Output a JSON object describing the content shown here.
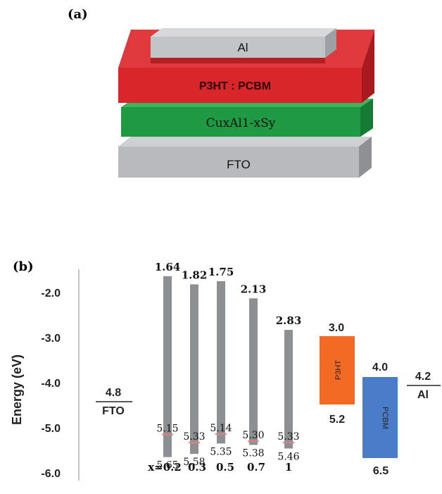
{
  "panel_a": {
    "label": "(a)",
    "layers": {
      "al": "Al",
      "p3ht_pcbm": "P3HT : PCBM",
      "cuxalsy": "CuxAl1-xSy",
      "fto": "FTO"
    },
    "colors": {
      "al": "#c2c5c7",
      "p3ht_pcbm": "#d8262b",
      "cuxalsy": "#1f9a43",
      "fto": "#b9babd"
    }
  },
  "panel_b": {
    "label": "(b)",
    "y_axis_label": "Energy (eV)",
    "y_ticks": [
      "-2.0",
      "-3.0",
      "-4.0",
      "-5.0",
      "-6.0"
    ],
    "fto": {
      "value": "4.8",
      "name": "FTO"
    },
    "al": {
      "value": "4.2",
      "name": "Al"
    },
    "bars": [
      {
        "top": "1.64",
        "mid": "5.15",
        "bottom": "5.65",
        "x_label": "x=0.2"
      },
      {
        "top": "1.82",
        "mid": "5.33",
        "bottom": "5.58",
        "x_label": "0.3"
      },
      {
        "top": "1.75",
        "mid": "5.14",
        "bottom": "5.35",
        "x_label": "0.5"
      },
      {
        "top": "2.13",
        "mid": "5.30",
        "bottom": "5.38",
        "x_label": "0.7"
      },
      {
        "top": "2.83",
        "mid": "5.33",
        "bottom": "5.46",
        "x_label": "1"
      }
    ],
    "p3ht": {
      "name": "P3HT",
      "top": "3.0",
      "bottom": "5.2",
      "color": "#f26a24"
    },
    "pcbm": {
      "name": "PCBM",
      "top": "4.0",
      "bottom": "6.5",
      "color": "#4a7cc9"
    },
    "bar_color": "#8d9093",
    "mid_marker_color": "#e58080"
  }
}
